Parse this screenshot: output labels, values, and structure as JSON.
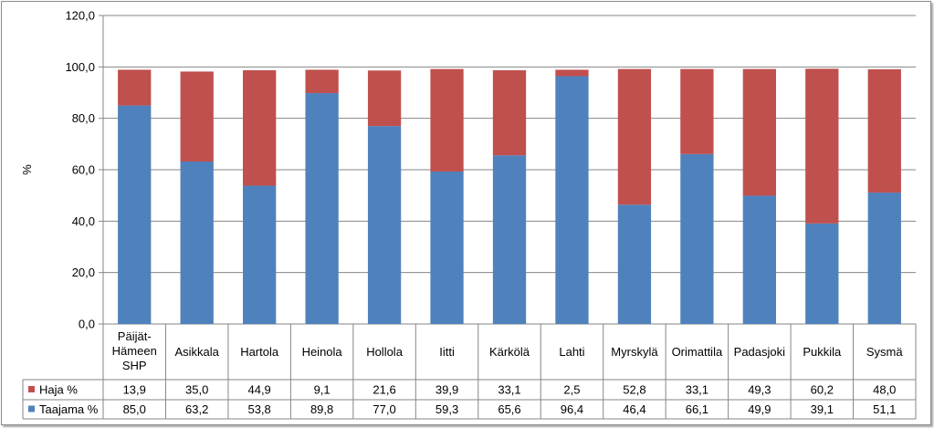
{
  "chart_data": {
    "type": "bar",
    "stacked": true,
    "ylabel": "%",
    "ylim": [
      0,
      120
    ],
    "yticks": [
      "0,0",
      "20,0",
      "40,0",
      "60,0",
      "80,0",
      "100,0",
      "120,0"
    ],
    "grid": true,
    "categories": [
      [
        "Päijät-",
        "Hämeen",
        "SHP"
      ],
      [
        "Asikkala"
      ],
      [
        "Hartola"
      ],
      [
        "Heinola"
      ],
      [
        "Hollola"
      ],
      [
        "Iitti"
      ],
      [
        "Kärkölä"
      ],
      [
        "Lahti"
      ],
      [
        "Myrskylä"
      ],
      [
        "Orimattila"
      ],
      [
        "Padasjoki"
      ],
      [
        "Pukkila"
      ],
      [
        "Sysmä"
      ]
    ],
    "series": [
      {
        "name": "Taajama %",
        "color": "#4f81bd",
        "values": [
          85.0,
          63.2,
          53.8,
          89.8,
          77.0,
          59.3,
          65.6,
          96.4,
          46.4,
          66.1,
          49.9,
          39.1,
          51.1
        ],
        "labels": [
          "85,0",
          "63,2",
          "53,8",
          "89,8",
          "77,0",
          "59,3",
          "65,6",
          "96,4",
          "46,4",
          "66,1",
          "49,9",
          "39,1",
          "51,1"
        ]
      },
      {
        "name": "Haja %",
        "color": "#c0504d",
        "values": [
          13.9,
          35.0,
          44.9,
          9.1,
          21.6,
          39.9,
          33.1,
          2.5,
          52.8,
          33.1,
          49.3,
          60.2,
          48.0
        ],
        "labels": [
          "13,9",
          "35,0",
          "44,9",
          "9,1",
          "21,6",
          "39,9",
          "33,1",
          "2,5",
          "52,8",
          "33,1",
          "49,3",
          "60,2",
          "48,0"
        ]
      }
    ],
    "legend": "data-table"
  }
}
